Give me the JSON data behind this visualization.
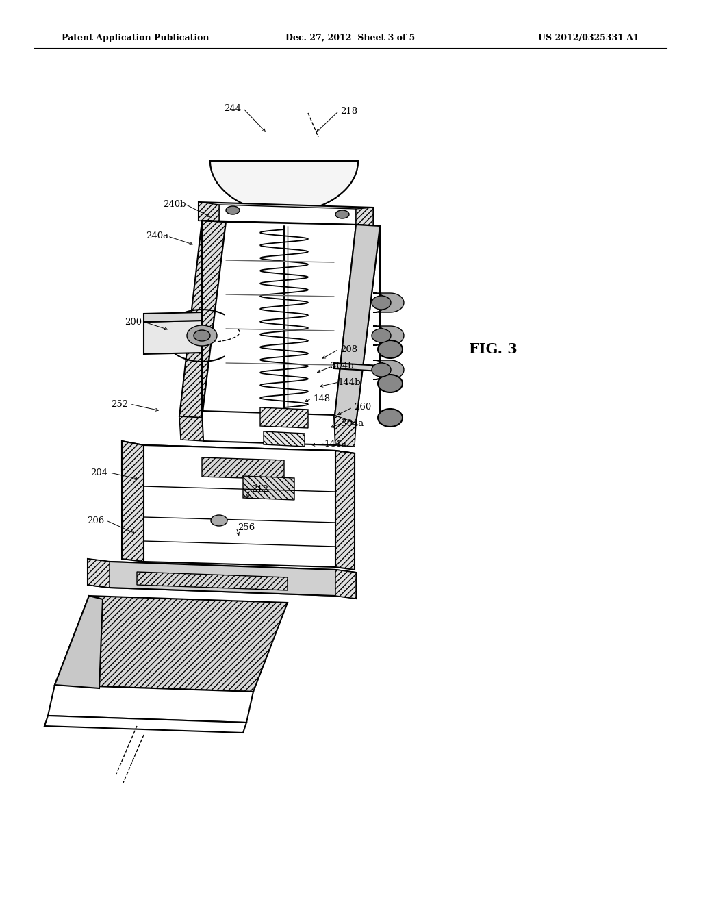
{
  "title_left": "Patent Application Publication",
  "title_center": "Dec. 27, 2012  Sheet 3 of 5",
  "title_right": "US 2012/0325331 A1",
  "fig_label": "FIG. 3",
  "background_color": "#ffffff",
  "line_color": "#000000",
  "gray_fill": "#c8c8c8",
  "light_gray": "#e8e8e8",
  "white_fill": "#ffffff",
  "hatch_fill": "#f0f0f0",
  "annotations": [
    [
      "244",
      340,
      158,
      390,
      195
    ],
    [
      "218",
      510,
      162,
      460,
      195
    ],
    [
      "240b",
      255,
      298,
      310,
      318
    ],
    [
      "240a",
      230,
      345,
      285,
      358
    ],
    [
      "200",
      195,
      470,
      248,
      482
    ],
    [
      "208",
      510,
      510,
      468,
      525
    ],
    [
      "304b",
      500,
      535,
      460,
      545
    ],
    [
      "144b",
      510,
      558,
      464,
      565
    ],
    [
      "148",
      470,
      582,
      442,
      588
    ],
    [
      "252",
      175,
      590,
      235,
      600
    ],
    [
      "260",
      530,
      595,
      490,
      607
    ],
    [
      "304a",
      515,
      618,
      480,
      625
    ],
    [
      "144a",
      490,
      648,
      452,
      650
    ],
    [
      "204",
      145,
      690,
      205,
      700
    ],
    [
      "212",
      380,
      715,
      360,
      730
    ],
    [
      "256",
      360,
      770,
      350,
      785
    ],
    [
      "206",
      140,
      760,
      200,
      780
    ]
  ]
}
